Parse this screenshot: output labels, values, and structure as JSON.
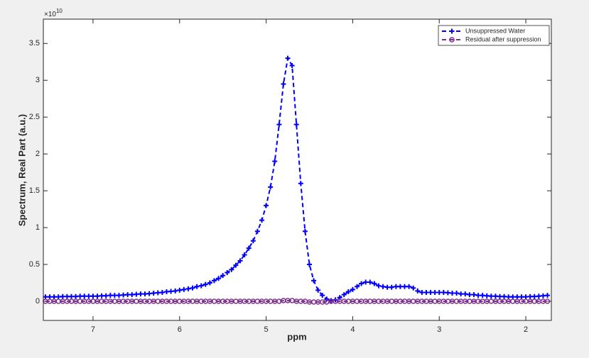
{
  "chart_data": {
    "type": "line",
    "x_label": "ppm",
    "y_label": "Spectrum, Real Part (a.u.)",
    "y_multiplier": "×10",
    "y_multiplier_exponent": "10",
    "xlim": [
      7.574,
      1.705
    ],
    "ylim": [
      -0.26,
      3.83
    ],
    "x_reversed": true,
    "xticks": [
      7,
      6,
      5,
      4,
      3,
      2
    ],
    "yticks": [
      0,
      0.5,
      1,
      1.5,
      2,
      2.5,
      3,
      3.5
    ],
    "legend": "upper right",
    "x": [
      7.55,
      7.5,
      7.45,
      7.4,
      7.35,
      7.3,
      7.25,
      7.2,
      7.15,
      7.1,
      7.05,
      7.0,
      6.95,
      6.9,
      6.85,
      6.8,
      6.75,
      6.7,
      6.65,
      6.6,
      6.55,
      6.5,
      6.45,
      6.4,
      6.35,
      6.3,
      6.25,
      6.2,
      6.15,
      6.1,
      6.05,
      6.0,
      5.95,
      5.9,
      5.85,
      5.8,
      5.75,
      5.7,
      5.65,
      5.6,
      5.55,
      5.5,
      5.45,
      5.4,
      5.35,
      5.3,
      5.25,
      5.2,
      5.15,
      5.1,
      5.05,
      5.0,
      4.95,
      4.9,
      4.85,
      4.8,
      4.75,
      4.7,
      4.65,
      4.6,
      4.55,
      4.5,
      4.45,
      4.4,
      4.35,
      4.3,
      4.25,
      4.2,
      4.15,
      4.1,
      4.05,
      4.0,
      3.95,
      3.9,
      3.85,
      3.8,
      3.75,
      3.7,
      3.65,
      3.6,
      3.55,
      3.5,
      3.45,
      3.4,
      3.35,
      3.3,
      3.25,
      3.2,
      3.15,
      3.1,
      3.05,
      3.0,
      2.95,
      2.9,
      2.85,
      2.8,
      2.75,
      2.7,
      2.65,
      2.6,
      2.55,
      2.5,
      2.45,
      2.4,
      2.35,
      2.3,
      2.25,
      2.2,
      2.15,
      2.1,
      2.05,
      2.0,
      1.95,
      1.9,
      1.85,
      1.8,
      1.75
    ],
    "series": [
      {
        "name": "Unsuppressed Water",
        "color": "#0000ff",
        "marker": "plus",
        "values": [
          0.06,
          0.06,
          0.06,
          0.06,
          0.065,
          0.065,
          0.065,
          0.065,
          0.07,
          0.07,
          0.07,
          0.07,
          0.07,
          0.075,
          0.075,
          0.08,
          0.08,
          0.08,
          0.085,
          0.09,
          0.09,
          0.095,
          0.1,
          0.1,
          0.105,
          0.11,
          0.115,
          0.12,
          0.13,
          0.135,
          0.14,
          0.15,
          0.16,
          0.17,
          0.18,
          0.2,
          0.21,
          0.23,
          0.25,
          0.28,
          0.31,
          0.35,
          0.39,
          0.43,
          0.49,
          0.55,
          0.63,
          0.72,
          0.82,
          0.95,
          1.1,
          1.3,
          1.55,
          1.9,
          2.4,
          2.95,
          3.3,
          3.2,
          2.4,
          1.6,
          0.95,
          0.5,
          0.28,
          0.15,
          0.08,
          0.03,
          0.01,
          0.02,
          0.05,
          0.09,
          0.13,
          0.16,
          0.2,
          0.24,
          0.26,
          0.26,
          0.24,
          0.21,
          0.2,
          0.19,
          0.19,
          0.2,
          0.2,
          0.2,
          0.2,
          0.18,
          0.14,
          0.12,
          0.12,
          0.12,
          0.12,
          0.12,
          0.12,
          0.115,
          0.11,
          0.11,
          0.1,
          0.1,
          0.09,
          0.09,
          0.08,
          0.08,
          0.075,
          0.07,
          0.07,
          0.065,
          0.065,
          0.06,
          0.06,
          0.06,
          0.06,
          0.06,
          0.065,
          0.065,
          0.07,
          0.075,
          0.08
        ]
      },
      {
        "name": "Residual after suppression",
        "color": "#7e2f8e",
        "marker": "circle",
        "values": [
          0,
          0,
          0,
          0,
          0,
          0,
          0,
          0,
          0,
          0,
          0,
          0,
          0,
          0,
          0,
          0,
          0,
          0,
          0,
          0,
          0,
          0,
          0,
          0,
          0,
          0,
          0,
          0,
          0,
          0,
          0,
          0,
          0,
          0,
          0,
          0,
          0,
          0,
          0,
          0,
          0,
          0,
          0,
          0,
          0,
          0,
          0,
          0,
          0,
          0,
          0,
          0,
          0,
          0,
          0,
          0.01,
          0.01,
          0.01,
          0,
          0,
          0,
          -0.01,
          -0.01,
          -0.01,
          -0.01,
          -0.01,
          0,
          0,
          0,
          0,
          0,
          0,
          0,
          0,
          0,
          0,
          0,
          0,
          0,
          0,
          0,
          0,
          0,
          0,
          0,
          0,
          0,
          0,
          0,
          0,
          0,
          0,
          0,
          0,
          0,
          0,
          0,
          0,
          0,
          0,
          0,
          0,
          0,
          0,
          0,
          0,
          0,
          0,
          0,
          0,
          0,
          0,
          0,
          0,
          0,
          0,
          0
        ]
      }
    ]
  }
}
